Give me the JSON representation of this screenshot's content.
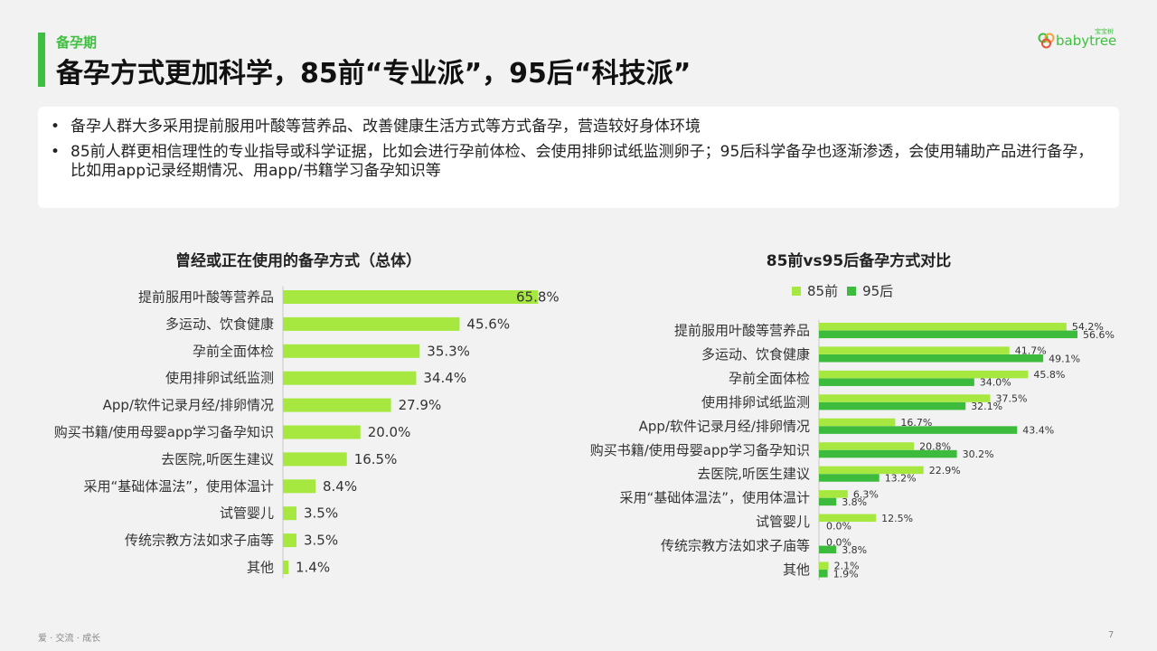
{
  "header": {
    "section_label": "备孕期",
    "title": "备孕方式更加科学，85前“专业派”，95后“科技派”"
  },
  "logo": {
    "text": "babytree",
    "badge": "宝宝树"
  },
  "summary": {
    "bullets": [
      "备孕人群大多采用提前服用叶酸等营养品、改善健康生活方式等方式备孕，营造较好身体环境",
      "85前人群更相信理性的专业指导或科学证据，比如会进行孕前体检、会使用排卵试纸监测卵子；95后科学备孕也逐渐渗透，会使用辅助产品进行备孕，比如用app记录经期情况、用app/书籍学习备孕知识等"
    ],
    "bullet_symbol": "•"
  },
  "colors": {
    "light_green": "#a6e83f",
    "dark_green": "#3dbb3d",
    "accent": "#3fbf3f"
  },
  "chart_data": [
    {
      "type": "bar",
      "orientation": "horizontal",
      "title": "曾经或正在使用的备孕方式（总体）",
      "categories": [
        "提前服用叶酸等营养品",
        "多运动、饮食健康",
        "孕前全面体检",
        "使用排卵试纸监测",
        "App/软件记录月经/排卵情况",
        "购买书籍/使用母婴app学习备孕知识",
        "去医院,听医生建议",
        "采用“基础体温法”，使用体温计",
        "试管婴儿",
        "传统宗教方法如求子庙等",
        "其他"
      ],
      "values": [
        65.8,
        45.6,
        35.3,
        34.4,
        27.9,
        20.0,
        16.5,
        8.4,
        3.5,
        3.5,
        1.4
      ],
      "value_labels": [
        "65.8%",
        "45.6%",
        "35.3%",
        "34.4%",
        "27.9%",
        "20.0%",
        "16.5%",
        "8.4%",
        "3.5%",
        "3.5%",
        "1.4%"
      ],
      "xlim": [
        0,
        70
      ],
      "color": "#a6e83f"
    },
    {
      "type": "bar",
      "orientation": "horizontal",
      "title": "85前vs95后备孕方式对比",
      "legend_position": "top",
      "categories": [
        "提前服用叶酸等营养品",
        "多运动、饮食健康",
        "孕前全面体检",
        "使用排卵试纸监测",
        "App/软件记录月经/排卵情况",
        "购买书籍/使用母婴app学习备孕知识",
        "去医院,听医生建议",
        "采用“基础体温法”，使用体温计",
        "试管婴儿",
        "传统宗教方法如求子庙等",
        "其他"
      ],
      "series": [
        {
          "name": "85前",
          "color": "#a6e83f",
          "values": [
            54.2,
            41.7,
            45.8,
            37.5,
            16.7,
            20.8,
            22.9,
            6.3,
            12.5,
            0.0,
            2.1
          ],
          "value_labels": [
            "54.2%",
            "41.7%",
            "45.8%",
            "37.5%",
            "16.7%",
            "20.8%",
            "22.9%",
            "6.3%",
            "12.5%",
            "0.0%",
            "2.1%"
          ]
        },
        {
          "name": "95后",
          "color": "#3dbb3d",
          "values": [
            56.6,
            49.1,
            34.0,
            32.1,
            43.4,
            30.2,
            13.2,
            3.8,
            0.0,
            3.8,
            1.9
          ],
          "value_labels": [
            "56.6%",
            "49.1%",
            "34.0%",
            "32.1%",
            "43.4%",
            "30.2%",
            "13.2%",
            "3.8%",
            "0.0%",
            "3.8%",
            "1.9%"
          ]
        }
      ],
      "xlim": [
        0,
        60
      ]
    }
  ],
  "footer": {
    "left": "爱 · 交流 · 成长",
    "page_number": "7"
  }
}
